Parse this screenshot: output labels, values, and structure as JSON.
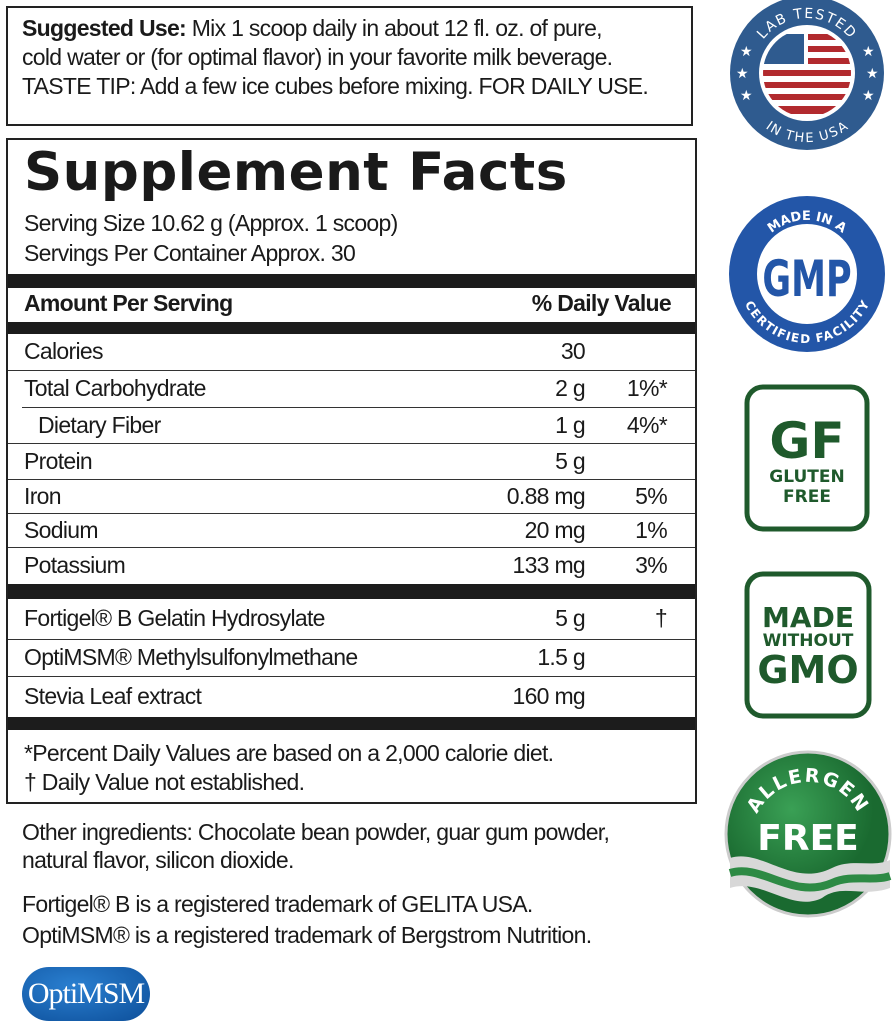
{
  "suggested_use": {
    "label": "Suggested Use:",
    "line1": " Mix 1 scoop daily in about 12 fl. oz. of pure,",
    "line2": "cold water or (for optimal flavor) in your favorite milk beverage.",
    "line3": "TASTE TIP: Add a few ice cubes before mixing. FOR DAILY USE."
  },
  "facts": {
    "title": "Supplement Facts",
    "serving_size": "Serving Size 10.62 g (Approx. 1 scoop)",
    "servings_per_container": "Servings Per Container Approx. 30",
    "header_amount": "Amount Per Serving",
    "header_dv": "% Daily Value",
    "nutrients": [
      {
        "name": "Calories",
        "amount": "30",
        "dv": ""
      },
      {
        "name": "Total Carbohydrate",
        "amount": "2 g",
        "dv": "1%*"
      },
      {
        "name": "Dietary Fiber",
        "amount": "1 g",
        "dv": "4%*"
      },
      {
        "name": "Protein",
        "amount": "5 g",
        "dv": ""
      },
      {
        "name": "Iron",
        "amount": "0.88 mg",
        "dv": "5%"
      },
      {
        "name": "Sodium",
        "amount": "20 mg",
        "dv": "1%"
      },
      {
        "name": "Potassium",
        "amount": "133 mg",
        "dv": "3%"
      }
    ],
    "ingredients": [
      {
        "name": "Fortigel® B Gelatin Hydrosylate",
        "amount": "5 g",
        "dv": "†"
      },
      {
        "name": "OptiMSM® Methylsulfonylmethane",
        "amount": "1.5 g",
        "dv": ""
      },
      {
        "name": "Stevia Leaf extract",
        "amount": "160 mg",
        "dv": ""
      }
    ],
    "footnote1": "*Percent Daily Values are based on a 2,000 calorie diet.",
    "footnote2": "† Daily Value not established."
  },
  "other_ingredients_1": "Other ingredients: Chocolate bean powder, guar gum powder,",
  "other_ingredients_2": "natural flavor, silicon dioxide.",
  "trademark_1": "Fortigel® B is a registered trademark of GELITA USA.",
  "trademark_2": "OptiMSM® is a registered trademark of Bergstrom Nutrition.",
  "optimsm_logo": "OptiMSM",
  "badges": {
    "lab_tested": {
      "top": "LAB TESTED",
      "bottom": "IN THE USA",
      "color": "#2f5b8f"
    },
    "gmp": {
      "top": "MADE IN A",
      "center": "GMP",
      "bottom": "CERTIFIED FACILITY",
      "color": "#2356a8"
    },
    "gluten_free": {
      "big": "GF",
      "line1": "GLUTEN",
      "line2": "FREE",
      "color": "#1f5a2c"
    },
    "non_gmo": {
      "line1": "MADE",
      "line2": "WITHOUT",
      "line3": "GMO",
      "color": "#1f5a2c"
    },
    "allergen_free": {
      "top": "ALLERGEN",
      "center": "FREE",
      "color": "#237a3a"
    }
  }
}
